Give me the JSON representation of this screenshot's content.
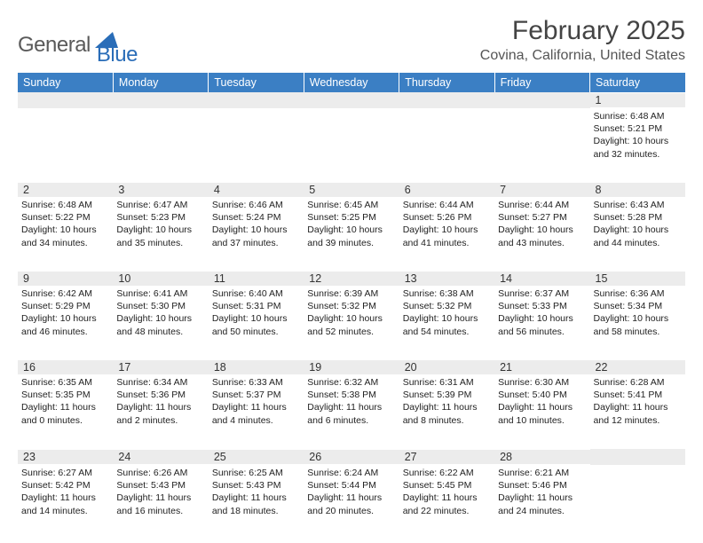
{
  "branding": {
    "logo_part1": "General",
    "logo_part2": "Blue",
    "logo_part1_color": "#5a5a5a",
    "logo_part2_color": "#2a6db8",
    "wedge_color": "#2a6db8"
  },
  "header": {
    "title": "February 2025",
    "location": "Covina, California, United States",
    "title_color": "#444444",
    "location_color": "#555555",
    "title_fontsize": 30,
    "location_fontsize": 16
  },
  "styling": {
    "header_row_bg": "#3b7fc4",
    "header_row_fg": "#ffffff",
    "daynum_bg": "#ececec",
    "page_bg": "#ffffff",
    "body_font": "Arial",
    "day_header_fontsize": 12.5,
    "daynum_fontsize": 12.5,
    "detail_fontsize": 10.5
  },
  "day_headers": [
    "Sunday",
    "Monday",
    "Tuesday",
    "Wednesday",
    "Thursday",
    "Friday",
    "Saturday"
  ],
  "weeks": [
    [
      null,
      null,
      null,
      null,
      null,
      null,
      {
        "n": "1",
        "sunrise": "Sunrise: 6:48 AM",
        "sunset": "Sunset: 5:21 PM",
        "daylight": "Daylight: 10 hours and 32 minutes."
      }
    ],
    [
      {
        "n": "2",
        "sunrise": "Sunrise: 6:48 AM",
        "sunset": "Sunset: 5:22 PM",
        "daylight": "Daylight: 10 hours and 34 minutes."
      },
      {
        "n": "3",
        "sunrise": "Sunrise: 6:47 AM",
        "sunset": "Sunset: 5:23 PM",
        "daylight": "Daylight: 10 hours and 35 minutes."
      },
      {
        "n": "4",
        "sunrise": "Sunrise: 6:46 AM",
        "sunset": "Sunset: 5:24 PM",
        "daylight": "Daylight: 10 hours and 37 minutes."
      },
      {
        "n": "5",
        "sunrise": "Sunrise: 6:45 AM",
        "sunset": "Sunset: 5:25 PM",
        "daylight": "Daylight: 10 hours and 39 minutes."
      },
      {
        "n": "6",
        "sunrise": "Sunrise: 6:44 AM",
        "sunset": "Sunset: 5:26 PM",
        "daylight": "Daylight: 10 hours and 41 minutes."
      },
      {
        "n": "7",
        "sunrise": "Sunrise: 6:44 AM",
        "sunset": "Sunset: 5:27 PM",
        "daylight": "Daylight: 10 hours and 43 minutes."
      },
      {
        "n": "8",
        "sunrise": "Sunrise: 6:43 AM",
        "sunset": "Sunset: 5:28 PM",
        "daylight": "Daylight: 10 hours and 44 minutes."
      }
    ],
    [
      {
        "n": "9",
        "sunrise": "Sunrise: 6:42 AM",
        "sunset": "Sunset: 5:29 PM",
        "daylight": "Daylight: 10 hours and 46 minutes."
      },
      {
        "n": "10",
        "sunrise": "Sunrise: 6:41 AM",
        "sunset": "Sunset: 5:30 PM",
        "daylight": "Daylight: 10 hours and 48 minutes."
      },
      {
        "n": "11",
        "sunrise": "Sunrise: 6:40 AM",
        "sunset": "Sunset: 5:31 PM",
        "daylight": "Daylight: 10 hours and 50 minutes."
      },
      {
        "n": "12",
        "sunrise": "Sunrise: 6:39 AM",
        "sunset": "Sunset: 5:32 PM",
        "daylight": "Daylight: 10 hours and 52 minutes."
      },
      {
        "n": "13",
        "sunrise": "Sunrise: 6:38 AM",
        "sunset": "Sunset: 5:32 PM",
        "daylight": "Daylight: 10 hours and 54 minutes."
      },
      {
        "n": "14",
        "sunrise": "Sunrise: 6:37 AM",
        "sunset": "Sunset: 5:33 PM",
        "daylight": "Daylight: 10 hours and 56 minutes."
      },
      {
        "n": "15",
        "sunrise": "Sunrise: 6:36 AM",
        "sunset": "Sunset: 5:34 PM",
        "daylight": "Daylight: 10 hours and 58 minutes."
      }
    ],
    [
      {
        "n": "16",
        "sunrise": "Sunrise: 6:35 AM",
        "sunset": "Sunset: 5:35 PM",
        "daylight": "Daylight: 11 hours and 0 minutes."
      },
      {
        "n": "17",
        "sunrise": "Sunrise: 6:34 AM",
        "sunset": "Sunset: 5:36 PM",
        "daylight": "Daylight: 11 hours and 2 minutes."
      },
      {
        "n": "18",
        "sunrise": "Sunrise: 6:33 AM",
        "sunset": "Sunset: 5:37 PM",
        "daylight": "Daylight: 11 hours and 4 minutes."
      },
      {
        "n": "19",
        "sunrise": "Sunrise: 6:32 AM",
        "sunset": "Sunset: 5:38 PM",
        "daylight": "Daylight: 11 hours and 6 minutes."
      },
      {
        "n": "20",
        "sunrise": "Sunrise: 6:31 AM",
        "sunset": "Sunset: 5:39 PM",
        "daylight": "Daylight: 11 hours and 8 minutes."
      },
      {
        "n": "21",
        "sunrise": "Sunrise: 6:30 AM",
        "sunset": "Sunset: 5:40 PM",
        "daylight": "Daylight: 11 hours and 10 minutes."
      },
      {
        "n": "22",
        "sunrise": "Sunrise: 6:28 AM",
        "sunset": "Sunset: 5:41 PM",
        "daylight": "Daylight: 11 hours and 12 minutes."
      }
    ],
    [
      {
        "n": "23",
        "sunrise": "Sunrise: 6:27 AM",
        "sunset": "Sunset: 5:42 PM",
        "daylight": "Daylight: 11 hours and 14 minutes."
      },
      {
        "n": "24",
        "sunrise": "Sunrise: 6:26 AM",
        "sunset": "Sunset: 5:43 PM",
        "daylight": "Daylight: 11 hours and 16 minutes."
      },
      {
        "n": "25",
        "sunrise": "Sunrise: 6:25 AM",
        "sunset": "Sunset: 5:43 PM",
        "daylight": "Daylight: 11 hours and 18 minutes."
      },
      {
        "n": "26",
        "sunrise": "Sunrise: 6:24 AM",
        "sunset": "Sunset: 5:44 PM",
        "daylight": "Daylight: 11 hours and 20 minutes."
      },
      {
        "n": "27",
        "sunrise": "Sunrise: 6:22 AM",
        "sunset": "Sunset: 5:45 PM",
        "daylight": "Daylight: 11 hours and 22 minutes."
      },
      {
        "n": "28",
        "sunrise": "Sunrise: 6:21 AM",
        "sunset": "Sunset: 5:46 PM",
        "daylight": "Daylight: 11 hours and 24 minutes."
      },
      null
    ]
  ]
}
